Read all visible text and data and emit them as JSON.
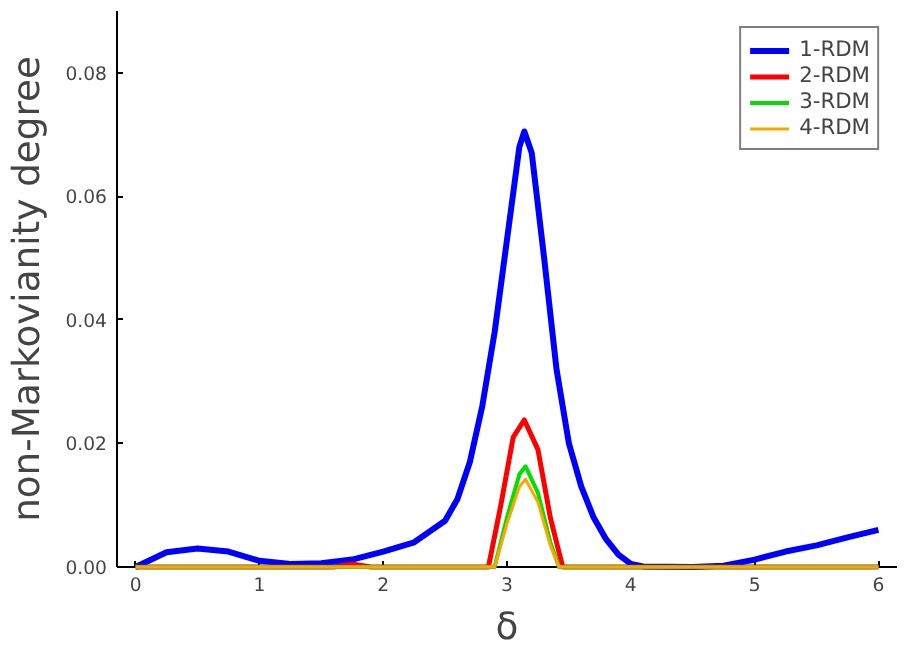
{
  "chart_data": {
    "type": "line",
    "xlabel": "δ",
    "ylabel": "non-Markovianity degree",
    "xlim": [
      -0.15,
      6.15
    ],
    "ylim": [
      0,
      0.09
    ],
    "xticks": [
      0,
      1,
      2,
      3,
      4,
      5,
      6
    ],
    "yticks": [
      {
        "value": 0,
        "label": "0.00"
      },
      {
        "value": 0.02,
        "label": "0.02"
      },
      {
        "value": 0.04,
        "label": "0.04"
      },
      {
        "value": 0.06,
        "label": "0.06"
      },
      {
        "value": 0.08,
        "label": "0.08"
      }
    ],
    "grid": false,
    "legend": "top right",
    "line_style": "solid",
    "marker": "none",
    "series": [
      {
        "name": "1-RDM",
        "color": "#0000ff",
        "x": [
          0,
          0.25,
          0.5,
          0.75,
          1,
          1.25,
          1.5,
          1.75,
          2,
          2.25,
          2.5,
          2.6,
          2.7,
          2.8,
          2.9,
          3.0,
          3.1,
          3.14,
          3.2,
          3.3,
          3.4,
          3.5,
          3.6,
          3.7,
          3.8,
          3.9,
          4.0,
          4.1,
          4.5,
          4.75,
          5,
          5.25,
          5.5,
          5.75,
          6
        ],
        "values": [
          0,
          0.0024,
          0.003,
          0.0025,
          0.001,
          0.0005,
          0.0006,
          0.0012,
          0.0025,
          0.004,
          0.0075,
          0.011,
          0.017,
          0.026,
          0.038,
          0.053,
          0.068,
          0.0705,
          0.067,
          0.05,
          0.032,
          0.02,
          0.013,
          0.008,
          0.0045,
          0.002,
          0.0005,
          0.0001,
          0,
          0.0002,
          0.0012,
          0.0025,
          0.0035,
          0.0048,
          0.006
        ]
      },
      {
        "name": "2-RDM",
        "color": "#ff0000",
        "x": [
          0,
          1.6,
          1.75,
          1.9,
          2.85,
          2.95,
          3.05,
          3.14,
          3.25,
          3.35,
          3.45,
          6
        ],
        "values": [
          0,
          0,
          0.0005,
          0,
          0,
          0.01,
          0.021,
          0.0238,
          0.019,
          0.008,
          0,
          0
        ]
      },
      {
        "name": "3-RDM",
        "color": "#00e000",
        "x": [
          0,
          2.9,
          3.0,
          3.1,
          3.15,
          3.25,
          3.35,
          3.42,
          6
        ],
        "values": [
          0,
          0,
          0.008,
          0.015,
          0.0163,
          0.012,
          0.004,
          0,
          0
        ]
      },
      {
        "name": "4-RDM",
        "color": "#ffa500",
        "x": [
          0,
          2.9,
          3.0,
          3.1,
          3.15,
          3.25,
          3.35,
          3.42,
          6
        ],
        "values": [
          0,
          0,
          0.007,
          0.013,
          0.0142,
          0.0105,
          0.0035,
          0,
          0
        ]
      }
    ]
  }
}
